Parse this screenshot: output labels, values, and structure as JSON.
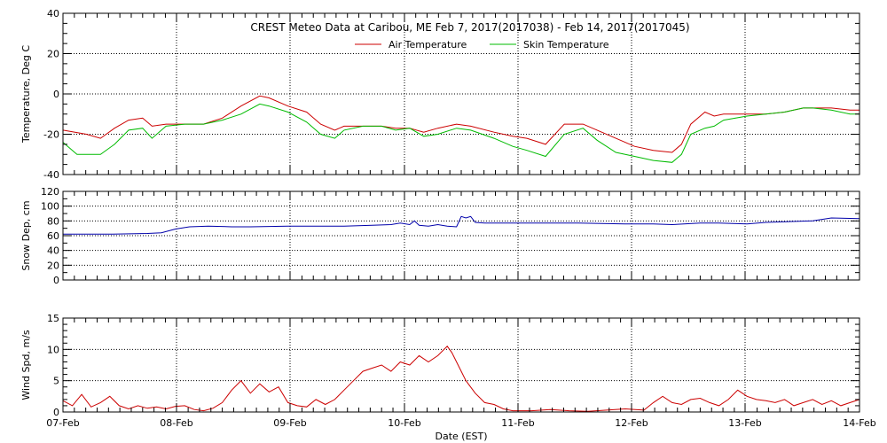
{
  "chart_data": {
    "title": "CREST Meteo Data at Caribou, ME   Feb  7, 2017(2017038) - Feb 14, 2017(2017045)",
    "xlabel": "Date (EST)",
    "x_tick_labels": [
      "07-Feb",
      "08-Feb",
      "09-Feb",
      "10-Feb",
      "11-Feb",
      "12-Feb",
      "13-Feb",
      "14-Feb"
    ],
    "x_range_days": [
      0,
      7
    ],
    "grid": true,
    "panels": [
      {
        "type": "line",
        "ylabel": "Temperature, Deg C",
        "ylim": [
          -40,
          40
        ],
        "yticks": [
          -40,
          -20,
          0,
          20,
          40
        ],
        "legend": "top-center",
        "series": [
          {
            "name": "Air Temperature",
            "color": "#cc0000",
            "points": [
              [
                0,
                -18
              ],
              [
                0.25,
                -20
              ],
              [
                0.4,
                -22
              ],
              [
                0.55,
                -17
              ],
              [
                0.7,
                -13
              ],
              [
                0.85,
                -12
              ],
              [
                0.95,
                -16
              ],
              [
                1.1,
                -15
              ],
              [
                1.3,
                -15
              ],
              [
                1.5,
                -15
              ],
              [
                1.7,
                -12
              ],
              [
                1.9,
                -6
              ],
              [
                2.1,
                -1
              ],
              [
                2.2,
                -2
              ],
              [
                2.4,
                -6
              ],
              [
                2.6,
                -9
              ],
              [
                2.75,
                -15
              ],
              [
                2.9,
                -18
              ],
              [
                3.0,
                -16
              ],
              [
                3.2,
                -16
              ],
              [
                3.4,
                -16
              ],
              [
                3.55,
                -17
              ],
              [
                3.7,
                -17
              ],
              [
                3.85,
                -19
              ],
              [
                4.0,
                -17
              ],
              [
                4.2,
                -15
              ],
              [
                4.35,
                -16
              ],
              [
                4.6,
                -19
              ],
              [
                4.8,
                -21
              ],
              [
                4.95,
                -22
              ],
              [
                5.15,
                -25
              ],
              [
                5.35,
                -15
              ],
              [
                5.55,
                -15
              ],
              [
                5.7,
                -18
              ],
              [
                5.9,
                -22
              ],
              [
                6.1,
                -26
              ],
              [
                6.3,
                -28
              ],
              [
                6.5,
                -29
              ],
              [
                6.6,
                -25
              ],
              [
                6.7,
                -15
              ],
              [
                6.85,
                -9
              ],
              [
                6.95,
                -11
              ],
              [
                7.05,
                -10
              ],
              [
                7.3,
                -10
              ],
              [
                7.5,
                -10
              ],
              [
                7.7,
                -9
              ],
              [
                7.9,
                -7
              ],
              [
                8.0,
                -7
              ],
              [
                8.2,
                -7
              ],
              [
                8.4,
                -8
              ],
              [
                8.5,
                -8
              ]
            ]
          },
          {
            "name": "Skin Temperature",
            "color": "#00bb00",
            "points": [
              [
                0,
                -24
              ],
              [
                0.15,
                -30
              ],
              [
                0.4,
                -30
              ],
              [
                0.55,
                -25
              ],
              [
                0.7,
                -18
              ],
              [
                0.85,
                -17
              ],
              [
                0.95,
                -22
              ],
              [
                1.1,
                -16
              ],
              [
                1.3,
                -15
              ],
              [
                1.5,
                -15
              ],
              [
                1.7,
                -13
              ],
              [
                1.9,
                -10
              ],
              [
                2.1,
                -5
              ],
              [
                2.2,
                -6
              ],
              [
                2.4,
                -9
              ],
              [
                2.6,
                -14
              ],
              [
                2.75,
                -20
              ],
              [
                2.9,
                -22
              ],
              [
                3.0,
                -18
              ],
              [
                3.2,
                -16
              ],
              [
                3.4,
                -16
              ],
              [
                3.55,
                -18
              ],
              [
                3.7,
                -17
              ],
              [
                3.85,
                -21
              ],
              [
                4.0,
                -20
              ],
              [
                4.2,
                -17
              ],
              [
                4.35,
                -18
              ],
              [
                4.6,
                -22
              ],
              [
                4.8,
                -26
              ],
              [
                4.95,
                -28
              ],
              [
                5.15,
                -31
              ],
              [
                5.35,
                -20
              ],
              [
                5.55,
                -17
              ],
              [
                5.7,
                -23
              ],
              [
                5.9,
                -29
              ],
              [
                6.1,
                -31
              ],
              [
                6.3,
                -33
              ],
              [
                6.5,
                -34
              ],
              [
                6.6,
                -30
              ],
              [
                6.7,
                -20
              ],
              [
                6.85,
                -17
              ],
              [
                6.95,
                -16
              ],
              [
                7.05,
                -13
              ],
              [
                7.3,
                -11
              ],
              [
                7.5,
                -10
              ],
              [
                7.7,
                -9
              ],
              [
                7.9,
                -7
              ],
              [
                8.0,
                -7
              ],
              [
                8.2,
                -8
              ],
              [
                8.4,
                -10
              ],
              [
                8.5,
                -10
              ]
            ]
          }
        ]
      },
      {
        "type": "line",
        "ylabel": "Snow Dep, cm",
        "ylim": [
          0,
          120
        ],
        "yticks": [
          0,
          20,
          40,
          60,
          80,
          100,
          120
        ],
        "series": [
          {
            "name": "",
            "color": "#0000aa",
            "points": [
              [
                0,
                62
              ],
              [
                0.5,
                62
              ],
              [
                0.9,
                63
              ],
              [
                1.05,
                64
              ],
              [
                1.2,
                69
              ],
              [
                1.35,
                72
              ],
              [
                1.55,
                73
              ],
              [
                1.8,
                72
              ],
              [
                2.0,
                72
              ],
              [
                2.4,
                73
              ],
              [
                3.0,
                73
              ],
              [
                3.3,
                74
              ],
              [
                3.5,
                75
              ],
              [
                3.6,
                77
              ],
              [
                3.7,
                75
              ],
              [
                3.75,
                80
              ],
              [
                3.8,
                74
              ],
              [
                3.9,
                73
              ],
              [
                4.0,
                75
              ],
              [
                4.1,
                73
              ],
              [
                4.2,
                72
              ],
              [
                4.25,
                86
              ],
              [
                4.3,
                84
              ],
              [
                4.35,
                86
              ],
              [
                4.4,
                78
              ],
              [
                4.5,
                77
              ],
              [
                5.0,
                77
              ],
              [
                5.5,
                77
              ],
              [
                6.0,
                76
              ],
              [
                6.3,
                76
              ],
              [
                6.5,
                75
              ],
              [
                6.8,
                77
              ],
              [
                7.0,
                77
              ],
              [
                7.3,
                76
              ],
              [
                7.5,
                78
              ],
              [
                8.0,
                80
              ],
              [
                8.2,
                84
              ],
              [
                8.5,
                83
              ]
            ]
          }
        ]
      },
      {
        "type": "line",
        "ylabel": "Wind Spd, m/s",
        "ylim": [
          0,
          15
        ],
        "yticks": [
          0,
          5,
          10,
          15
        ],
        "series": [
          {
            "name": "",
            "color": "#cc0000",
            "points": [
              [
                0,
                1.8
              ],
              [
                0.1,
                1.0
              ],
              [
                0.2,
                2.8
              ],
              [
                0.3,
                0.8
              ],
              [
                0.4,
                1.5
              ],
              [
                0.5,
                2.5
              ],
              [
                0.6,
                1.0
              ],
              [
                0.7,
                0.5
              ],
              [
                0.8,
                1.0
              ],
              [
                0.9,
                0.6
              ],
              [
                1.0,
                0.8
              ],
              [
                1.1,
                0.5
              ],
              [
                1.2,
                0.9
              ],
              [
                1.3,
                1.0
              ],
              [
                1.4,
                0.4
              ],
              [
                1.5,
                0.2
              ],
              [
                1.6,
                0.6
              ],
              [
                1.7,
                1.5
              ],
              [
                1.8,
                3.5
              ],
              [
                1.9,
                5.0
              ],
              [
                2.0,
                3.0
              ],
              [
                2.1,
                4.5
              ],
              [
                2.2,
                3.2
              ],
              [
                2.3,
                4.0
              ],
              [
                2.4,
                1.5
              ],
              [
                2.5,
                1.0
              ],
              [
                2.6,
                0.8
              ],
              [
                2.7,
                2.0
              ],
              [
                2.8,
                1.2
              ],
              [
                2.9,
                2.0
              ],
              [
                3.0,
                3.5
              ],
              [
                3.1,
                5.0
              ],
              [
                3.2,
                6.5
              ],
              [
                3.3,
                7.0
              ],
              [
                3.4,
                7.5
              ],
              [
                3.5,
                6.5
              ],
              [
                3.6,
                8.0
              ],
              [
                3.7,
                7.5
              ],
              [
                3.8,
                9.0
              ],
              [
                3.9,
                8.0
              ],
              [
                4.0,
                9.0
              ],
              [
                4.1,
                10.5
              ],
              [
                4.15,
                9.5
              ],
              [
                4.2,
                8.0
              ],
              [
                4.3,
                5.0
              ],
              [
                4.4,
                3.0
              ],
              [
                4.5,
                1.5
              ],
              [
                4.6,
                1.2
              ],
              [
                4.7,
                0.5
              ],
              [
                4.8,
                0.2
              ],
              [
                5.0,
                0.2
              ],
              [
                5.2,
                0.4
              ],
              [
                5.4,
                0.2
              ],
              [
                5.6,
                0.1
              ],
              [
                5.8,
                0.3
              ],
              [
                6.0,
                0.5
              ],
              [
                6.2,
                0.3
              ],
              [
                6.3,
                1.5
              ],
              [
                6.4,
                2.5
              ],
              [
                6.5,
                1.5
              ],
              [
                6.6,
                1.2
              ],
              [
                6.7,
                2.0
              ],
              [
                6.8,
                2.2
              ],
              [
                6.9,
                1.5
              ],
              [
                7.0,
                1.0
              ],
              [
                7.1,
                2.0
              ],
              [
                7.2,
                3.5
              ],
              [
                7.3,
                2.5
              ],
              [
                7.4,
                2.0
              ],
              [
                7.5,
                1.8
              ],
              [
                7.6,
                1.5
              ],
              [
                7.7,
                2.0
              ],
              [
                7.8,
                1.0
              ],
              [
                7.9,
                1.5
              ],
              [
                8.0,
                2.0
              ],
              [
                8.1,
                1.2
              ],
              [
                8.2,
                1.8
              ],
              [
                8.3,
                1.0
              ],
              [
                8.4,
                1.5
              ],
              [
                8.5,
                2.0
              ]
            ]
          }
        ]
      }
    ]
  }
}
